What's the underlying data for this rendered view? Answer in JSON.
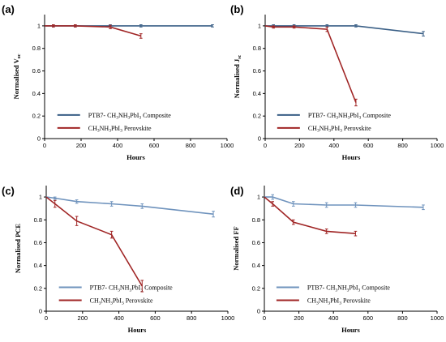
{
  "chart_data": [
    {
      "type": "line",
      "panel_label": "(a)",
      "xlabel": "Hours",
      "ylabel": "Normalised V",
      "ylabel_sub": "oc",
      "xlim": [
        0,
        1000
      ],
      "ylim": [
        0,
        1.1
      ],
      "xticks": [
        0,
        200,
        400,
        600,
        800,
        1000
      ],
      "yticks": [
        0,
        0.2,
        0.4,
        0.6,
        0.8,
        1
      ],
      "ytick_labels": [
        "0",
        "0.2",
        "0.4",
        "0.6",
        "0.8",
        "1"
      ],
      "grid": false,
      "legend_position": "bottom-left",
      "series": [
        {
          "name": "PTB7- CH3NH3PbI3 Composite",
          "legend_parts": [
            [
              "PTB7- CH",
              ""
            ],
            [
              "3",
              "sub"
            ],
            [
              "NH",
              ""
            ],
            [
              "3",
              "sub"
            ],
            [
              "PbI",
              ""
            ],
            [
              "3",
              "sub"
            ],
            [
              " Composite",
              ""
            ]
          ],
          "color": "#3a5f86",
          "x": [
            0,
            48,
            168,
            360,
            528,
            920
          ],
          "y": [
            1.0,
            1.0,
            1.0,
            1.0,
            1.0,
            1.0
          ],
          "err": [
            0.0,
            0.01,
            0.01,
            0.01,
            0.01,
            0.01
          ]
        },
        {
          "name": "CH3NH3PbI3 Perovskite",
          "legend_parts": [
            [
              "CH",
              ""
            ],
            [
              "3",
              "sub"
            ],
            [
              "NH",
              ""
            ],
            [
              "3",
              "sub"
            ],
            [
              "PbI",
              ""
            ],
            [
              "3",
              "sub"
            ],
            [
              " Perovskite",
              ""
            ]
          ],
          "color": "#a02525",
          "x": [
            0,
            48,
            168,
            360,
            528
          ],
          "y": [
            1.0,
            1.0,
            1.0,
            0.99,
            0.91
          ],
          "err": [
            0.0,
            0.01,
            0.01,
            0.015,
            0.02
          ]
        }
      ]
    },
    {
      "type": "line",
      "panel_label": "(b)",
      "xlabel": "Hours",
      "ylabel": "Normalised J",
      "ylabel_sub": "sc",
      "xlim": [
        0,
        1000
      ],
      "ylim": [
        0,
        1.1
      ],
      "xticks": [
        0,
        200,
        400,
        600,
        800,
        1000
      ],
      "yticks": [
        0,
        0.2,
        0.4,
        0.6,
        0.8,
        1
      ],
      "ytick_labels": [
        "0",
        "0.2",
        "0.4",
        "0.6",
        "0.8",
        "1"
      ],
      "grid": false,
      "legend_position": "bottom-left",
      "series": [
        {
          "name": "PTB7- CH3NH3PbI3 Composite",
          "legend_parts": [
            [
              "PTB7- CH",
              ""
            ],
            [
              "3",
              "sub"
            ],
            [
              "NH",
              ""
            ],
            [
              "3",
              "sub"
            ],
            [
              "PbI",
              ""
            ],
            [
              "3",
              "sub"
            ],
            [
              " Composite",
              ""
            ]
          ],
          "color": "#3a5f86",
          "x": [
            0,
            48,
            168,
            360,
            528,
            920
          ],
          "y": [
            1.0,
            1.0,
            1.0,
            1.0,
            1.0,
            0.93
          ],
          "err": [
            0.0,
            0.01,
            0.01,
            0.01,
            0.01,
            0.02
          ]
        },
        {
          "name": "CH3NH3PbI3 Perovskite",
          "legend_parts": [
            [
              "CH",
              ""
            ],
            [
              "3",
              "sub"
            ],
            [
              "NH",
              ""
            ],
            [
              "3",
              "sub"
            ],
            [
              "PbI",
              ""
            ],
            [
              "3",
              "sub"
            ],
            [
              " Perovskite",
              ""
            ]
          ],
          "color": "#a02525",
          "x": [
            0,
            48,
            168,
            360,
            528
          ],
          "y": [
            1.0,
            0.99,
            0.99,
            0.97,
            0.32
          ],
          "err": [
            0.0,
            0.01,
            0.01,
            0.02,
            0.03
          ]
        }
      ]
    },
    {
      "type": "line",
      "panel_label": "(c)",
      "xlabel": "Hours",
      "ylabel": "Normalised PCE",
      "ylabel_sub": "",
      "xlim": [
        0,
        1000
      ],
      "ylim": [
        0,
        1.1
      ],
      "xticks": [
        0,
        200,
        400,
        600,
        800,
        1000
      ],
      "yticks": [
        0,
        0.2,
        0.4,
        0.6,
        0.8,
        1
      ],
      "ytick_labels": [
        "0",
        "0.2",
        "0.4",
        "0.6",
        "0.8",
        "1"
      ],
      "grid": false,
      "legend_position": "bottom-left",
      "series": [
        {
          "name": "PTB7- CH3NH3PbI3 Composite",
          "legend_parts": [
            [
              "PTB7- CH",
              ""
            ],
            [
              "3",
              "sub"
            ],
            [
              "NH",
              ""
            ],
            [
              "3",
              "sub"
            ],
            [
              "PbI",
              ""
            ],
            [
              "3",
              "sub"
            ],
            [
              " Composite",
              ""
            ]
          ],
          "color": "#6f93bd",
          "x": [
            0,
            48,
            168,
            360,
            528,
            920
          ],
          "y": [
            1.0,
            0.99,
            0.96,
            0.94,
            0.92,
            0.85
          ],
          "err": [
            0.0,
            0.01,
            0.015,
            0.02,
            0.02,
            0.025
          ]
        },
        {
          "name": "CH3NH3PbI3 Perovskite",
          "legend_parts": [
            [
              "CH",
              ""
            ],
            [
              "3",
              "sub"
            ],
            [
              "NH",
              ""
            ],
            [
              "3",
              "sub"
            ],
            [
              "PbI",
              ""
            ],
            [
              "3",
              "sub"
            ],
            [
              " Perovskite",
              ""
            ]
          ],
          "color": "#a02525",
          "x": [
            0,
            48,
            168,
            360,
            528
          ],
          "y": [
            1.0,
            0.94,
            0.79,
            0.67,
            0.22
          ],
          "err": [
            0.0,
            0.03,
            0.04,
            0.03,
            0.05
          ]
        }
      ]
    },
    {
      "type": "line",
      "panel_label": "(d)",
      "xlabel": "Hours",
      "ylabel": "Normalised FF",
      "ylabel_sub": "",
      "xlim": [
        0,
        1000
      ],
      "ylim": [
        0,
        1.1
      ],
      "xticks": [
        0,
        200,
        400,
        600,
        800,
        1000
      ],
      "yticks": [
        0,
        0.2,
        0.4,
        0.6,
        0.8,
        1
      ],
      "ytick_labels": [
        "0",
        "0.2",
        "0.4",
        "0.6",
        "0.8",
        "1"
      ],
      "grid": false,
      "legend_position": "bottom-left",
      "series": [
        {
          "name": "PTB7- CH3NH3PbI3 Composite",
          "legend_parts": [
            [
              "PTB7- CH",
              ""
            ],
            [
              "3",
              "sub"
            ],
            [
              "NH",
              ""
            ],
            [
              "3",
              "sub"
            ],
            [
              "PbI",
              ""
            ],
            [
              "3",
              "sub"
            ],
            [
              " Composite",
              ""
            ]
          ],
          "color": "#6f93bd",
          "x": [
            0,
            48,
            168,
            360,
            528,
            920
          ],
          "y": [
            1.0,
            1.0,
            0.94,
            0.93,
            0.93,
            0.91
          ],
          "err": [
            0.0,
            0.02,
            0.02,
            0.02,
            0.02,
            0.02
          ]
        },
        {
          "name": "CH3NH3PbI3 Perovskite",
          "legend_parts": [
            [
              "CH",
              ""
            ],
            [
              "3",
              "sub"
            ],
            [
              "NH",
              ""
            ],
            [
              "3",
              "sub"
            ],
            [
              "PbI",
              ""
            ],
            [
              "3",
              "sub"
            ],
            [
              " Perovskite",
              ""
            ]
          ],
          "color": "#a02525",
          "x": [
            0,
            48,
            168,
            360,
            528
          ],
          "y": [
            1.0,
            0.94,
            0.78,
            0.7,
            0.68
          ],
          "err": [
            0.0,
            0.02,
            0.02,
            0.02,
            0.02
          ]
        }
      ]
    }
  ]
}
